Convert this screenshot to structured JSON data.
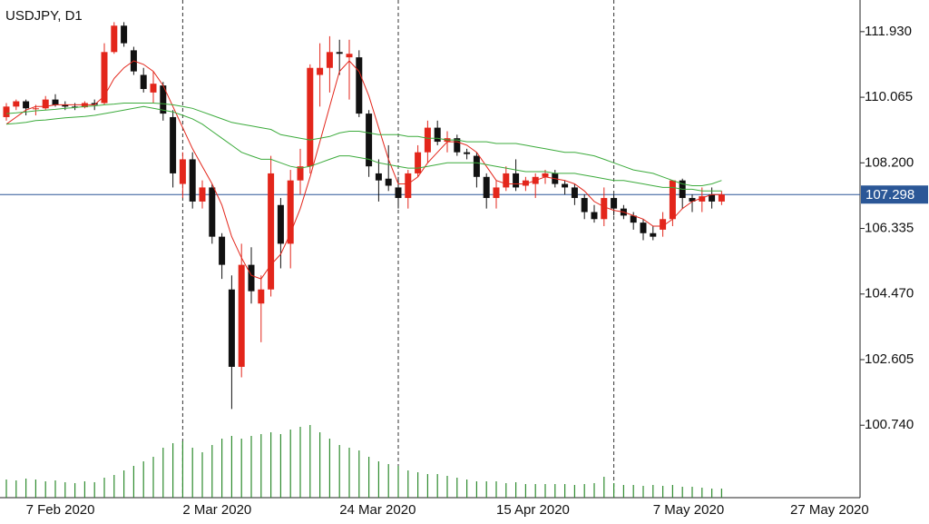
{
  "chart_data": {
    "type": "candlestick",
    "title": "USDJPY, D1",
    "categories": [
      null,
      null,
      "7 Feb 2020",
      null,
      null,
      null,
      null,
      null,
      null,
      null,
      null,
      null,
      null,
      null,
      null,
      null,
      null,
      null,
      "2 Mar 2020",
      null,
      null,
      null,
      null,
      null,
      null,
      null,
      null,
      null,
      null,
      null,
      null,
      null,
      null,
      null,
      "24 Mar 2020",
      null,
      null,
      null,
      null,
      null,
      null,
      null,
      null,
      null,
      null,
      null,
      null,
      null,
      null,
      null,
      "15 Apr 2020",
      null,
      null,
      null,
      null,
      null,
      null,
      null,
      null,
      null,
      null,
      null,
      null,
      null,
      null,
      null,
      "7 May 2020",
      null,
      null,
      null,
      null,
      null,
      null,
      null,
      null,
      null,
      null,
      null,
      null,
      null,
      "27 May 2020"
    ],
    "open": [
      109.5,
      109.8,
      109.95,
      109.75,
      109.75,
      110.0,
      109.85,
      109.8,
      109.78,
      109.9,
      109.9,
      111.35,
      112.1,
      111.4,
      110.7,
      110.2,
      110.4,
      109.5,
      107.6,
      108.3,
      107.1,
      107.5,
      106.1,
      104.6,
      102.4,
      105.3,
      104.2,
      104.6,
      107.0,
      105.9,
      107.7,
      108.1,
      110.7,
      110.9,
      111.35,
      111.2,
      111.2,
      109.6,
      107.9,
      107.75,
      107.5,
      107.2,
      107.9,
      108.5,
      109.2,
      108.8,
      108.9,
      108.5,
      108.4,
      107.8,
      107.2,
      107.5,
      107.9,
      107.55,
      107.6,
      107.8,
      107.9,
      107.6,
      107.5,
      107.2,
      106.8,
      106.6,
      107.2,
      106.9,
      106.7,
      106.5,
      106.2,
      106.3,
      106.6,
      107.7,
      107.2,
      107.1,
      107.3,
      107.1,
      null,
      null,
      null,
      null,
      null,
      null,
      null
    ],
    "high": [
      109.9,
      110.0,
      110.0,
      109.85,
      110.1,
      110.15,
      109.95,
      109.9,
      109.95,
      110.0,
      111.6,
      112.2,
      112.2,
      111.5,
      110.9,
      110.8,
      110.5,
      109.7,
      108.5,
      108.5,
      107.7,
      107.6,
      106.2,
      105.0,
      105.9,
      105.8,
      105.0,
      108.4,
      107.2,
      108.0,
      108.6,
      111.0,
      111.6,
      111.8,
      111.7,
      111.7,
      111.4,
      109.7,
      108.3,
      108.7,
      107.8,
      108.0,
      108.7,
      109.4,
      109.4,
      109.1,
      109.0,
      108.6,
      108.5,
      107.9,
      107.7,
      108.1,
      108.3,
      107.8,
      107.9,
      108.0,
      108.0,
      107.7,
      107.6,
      107.3,
      107.0,
      107.5,
      107.3,
      107.0,
      106.8,
      106.6,
      106.4,
      106.8,
      107.7,
      107.75,
      107.3,
      107.5,
      107.5,
      107.4,
      null,
      null,
      null,
      null,
      null,
      null,
      null
    ],
    "low": [
      109.4,
      109.7,
      109.55,
      109.55,
      109.7,
      109.8,
      109.7,
      109.7,
      109.75,
      109.7,
      109.85,
      111.3,
      111.5,
      110.7,
      110.2,
      109.9,
      109.4,
      107.5,
      107.2,
      106.9,
      106.9,
      105.9,
      104.9,
      101.2,
      102.1,
      104.2,
      103.1,
      104.4,
      105.2,
      105.2,
      107.3,
      107.9,
      109.8,
      110.2,
      110.7,
      110.0,
      109.5,
      107.8,
      107.1,
      107.4,
      106.9,
      106.9,
      107.8,
      108.2,
      108.7,
      108.5,
      108.4,
      108.3,
      107.5,
      106.9,
      106.9,
      107.4,
      107.4,
      107.4,
      107.2,
      107.6,
      107.5,
      107.3,
      107.0,
      106.6,
      106.5,
      106.4,
      106.7,
      106.6,
      106.3,
      106.0,
      106.0,
      106.1,
      106.4,
      106.9,
      106.8,
      106.8,
      106.9,
      107.0,
      null,
      null,
      null,
      null,
      null,
      null,
      null
    ],
    "close": [
      109.8,
      109.95,
      109.75,
      109.75,
      110.0,
      109.85,
      109.8,
      109.78,
      109.9,
      109.85,
      111.35,
      112.1,
      111.6,
      110.8,
      110.3,
      110.45,
      109.6,
      107.9,
      108.3,
      107.1,
      107.5,
      106.1,
      105.3,
      102.4,
      105.3,
      104.55,
      104.6,
      107.9,
      105.9,
      107.7,
      108.1,
      110.9,
      110.9,
      111.35,
      111.3,
      111.3,
      109.6,
      108.1,
      107.7,
      107.55,
      107.2,
      107.9,
      108.5,
      109.2,
      108.8,
      108.9,
      108.5,
      108.45,
      107.8,
      107.2,
      107.5,
      107.9,
      107.5,
      107.7,
      107.8,
      107.9,
      107.6,
      107.5,
      107.2,
      106.8,
      106.6,
      107.2,
      106.9,
      106.7,
      106.5,
      106.2,
      106.1,
      106.6,
      107.7,
      107.2,
      107.1,
      107.25,
      107.1,
      107.3,
      null,
      null,
      null,
      null,
      null,
      null,
      null
    ],
    "up_color": "#e3261b",
    "down_color": "#111111",
    "volume": [
      20,
      19,
      21,
      20,
      18,
      19,
      17,
      16,
      18,
      17,
      22,
      25,
      30,
      35,
      40,
      45,
      55,
      60,
      62,
      55,
      50,
      58,
      65,
      68,
      65,
      68,
      70,
      72,
      70,
      75,
      78,
      80,
      72,
      65,
      58,
      55,
      52,
      45,
      40,
      37,
      35,
      30,
      28,
      26,
      26,
      24,
      22,
      20,
      18,
      18,
      18,
      16,
      17,
      15,
      15,
      15,
      15,
      15,
      14,
      15,
      16,
      23,
      16,
      14,
      14,
      13,
      14,
      13,
      14,
      12,
      12,
      11,
      10,
      10,
      null,
      null,
      null,
      null,
      null,
      null,
      null
    ],
    "volume_color": "#2e8b2e",
    "lines": [
      {
        "color": "#e3261b",
        "values": [
          109.3,
          109.5,
          109.7,
          109.8,
          109.8,
          109.85,
          109.85,
          109.85,
          109.85,
          109.85,
          110.1,
          110.6,
          110.9,
          111.1,
          111.0,
          110.8,
          110.4,
          109.8,
          109.2,
          108.6,
          108.1,
          107.6,
          107.0,
          106.1,
          105.5,
          105.0,
          104.9,
          105.3,
          105.6,
          106.2,
          106.9,
          107.8,
          108.8,
          109.8,
          110.8,
          111.1,
          110.8,
          110.1,
          109.2,
          108.3,
          107.6,
          107.6,
          107.8,
          108.2,
          108.5,
          108.8,
          108.8,
          108.7,
          108.5,
          108.1,
          107.7,
          107.6,
          107.6,
          107.6,
          107.7,
          107.8,
          107.75,
          107.7,
          107.6,
          107.4,
          107.1,
          106.95,
          106.85,
          106.8,
          106.7,
          106.6,
          106.4,
          106.4,
          106.6,
          106.9,
          107.1,
          107.2,
          107.3,
          107.3,
          null,
          null,
          null,
          null,
          null,
          null,
          null
        ]
      },
      {
        "color": "#3cab3c",
        "values": [
          109.6,
          109.62,
          109.65,
          109.68,
          109.7,
          109.72,
          109.75,
          109.77,
          109.8,
          109.82,
          109.85,
          109.87,
          109.9,
          109.9,
          109.9,
          109.9,
          109.88,
          109.85,
          109.8,
          109.75,
          109.65,
          109.55,
          109.45,
          109.35,
          109.3,
          109.25,
          109.2,
          109.15,
          109.0,
          108.95,
          108.9,
          108.85,
          108.9,
          108.95,
          109.05,
          109.1,
          109.1,
          109.05,
          109.0,
          109.0,
          109.0,
          108.95,
          108.95,
          108.9,
          108.9,
          108.85,
          108.85,
          108.8,
          108.8,
          108.8,
          108.75,
          108.75,
          108.75,
          108.7,
          108.65,
          108.6,
          108.55,
          108.5,
          108.5,
          108.45,
          108.4,
          108.3,
          108.2,
          108.1,
          108.0,
          107.95,
          107.9,
          107.8,
          107.7,
          107.6,
          107.55,
          107.55,
          107.6,
          107.7,
          null,
          null,
          null,
          null,
          null,
          null,
          null
        ]
      },
      {
        "color": "#3cab3c",
        "values": [
          109.3,
          109.32,
          109.35,
          109.4,
          109.42,
          109.45,
          109.48,
          109.5,
          109.52,
          109.55,
          109.6,
          109.65,
          109.7,
          109.75,
          109.8,
          109.75,
          109.7,
          109.65,
          109.55,
          109.45,
          109.3,
          109.1,
          108.9,
          108.7,
          108.5,
          108.4,
          108.3,
          108.3,
          108.2,
          108.1,
          108.05,
          108.1,
          108.2,
          108.3,
          108.4,
          108.4,
          108.35,
          108.3,
          108.2,
          108.15,
          108.1,
          108.05,
          108.05,
          108.1,
          108.15,
          108.2,
          108.2,
          108.2,
          108.2,
          108.15,
          108.1,
          108.05,
          108.0,
          107.95,
          107.95,
          107.95,
          107.9,
          107.9,
          107.9,
          107.85,
          107.8,
          107.75,
          107.7,
          107.7,
          107.65,
          107.6,
          107.55,
          107.5,
          107.5,
          107.45,
          107.45,
          107.4,
          107.4,
          107.4,
          null,
          null,
          null,
          null,
          null,
          null,
          null
        ]
      }
    ],
    "ylim": [
      98.68,
      112.83
    ],
    "yticks": [
      {
        "value": 111.93,
        "label": "111.930"
      },
      110.065,
      {
        "value": 108.2,
        "label": "108.200"
      },
      106.335,
      {
        "value": 104.47,
        "label": "104.470"
      },
      102.605,
      {
        "value": 100.74,
        "label": "100.740"
      }
    ],
    "last_price": 107.298,
    "last_price_color": "#2b5797"
  }
}
